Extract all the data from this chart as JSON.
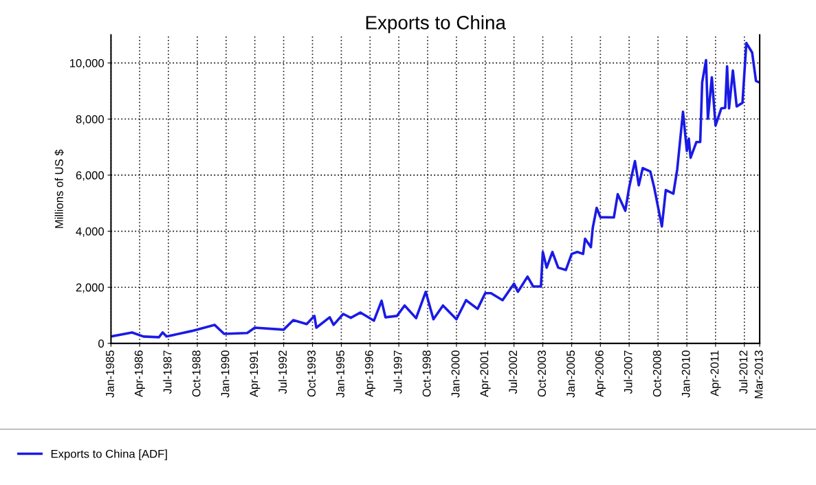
{
  "chart_data": {
    "type": "line",
    "title": "Exports to China",
    "ylabel": "Millions of US $",
    "x": [
      "1985-01",
      "1985-12",
      "1986-06",
      "1987-02",
      "1987-04",
      "1987-06",
      "1988-07",
      "1989-07",
      "1989-12",
      "1990-12",
      "1991-04",
      "1992-07",
      "1992-12",
      "1993-07",
      "1993-11",
      "1993-12",
      "1994-07",
      "1994-09",
      "1995-02",
      "1995-06",
      "1995-11",
      "1996-06",
      "1996-10",
      "1996-12",
      "1997-06",
      "1997-10",
      "1998-04",
      "1998-09",
      "1999-01",
      "1999-06",
      "2000-01",
      "2000-06",
      "2000-12",
      "2001-04",
      "2001-07",
      "2002-01",
      "2002-07",
      "2002-09",
      "2003-02",
      "2003-05",
      "2003-09",
      "2003-10",
      "2003-12",
      "2004-03",
      "2004-06",
      "2004-10",
      "2005-01",
      "2005-04",
      "2005-07",
      "2005-08",
      "2005-11",
      "2005-12",
      "2006-02",
      "2006-04",
      "2006-11",
      "2007-01",
      "2007-05",
      "2007-07",
      "2007-10",
      "2007-12",
      "2008-02",
      "2008-06",
      "2008-08",
      "2008-12",
      "2009-02",
      "2009-06",
      "2009-08",
      "2009-11",
      "2010-01",
      "2010-02",
      "2010-03",
      "2010-06",
      "2010-08",
      "2010-09",
      "2010-11",
      "2010-12",
      "2011-02",
      "2011-04",
      "2011-07",
      "2011-09",
      "2011-10",
      "2011-11",
      "2012-01",
      "2012-03",
      "2012-06",
      "2012-08",
      "2012-11",
      "2013-01",
      "2013-03"
    ],
    "series": [
      {
        "name": "Exports to China [ADF]",
        "color": "#1a1ae6",
        "values": [
          245,
          390,
          245,
          220,
          390,
          245,
          440,
          660,
          340,
          370,
          560,
          490,
          830,
          690,
          980,
          560,
          930,
          660,
          1050,
          910,
          1100,
          810,
          1520,
          930,
          980,
          1350,
          900,
          1840,
          860,
          1350,
          860,
          1540,
          1230,
          1790,
          1790,
          1540,
          2130,
          1840,
          2380,
          2030,
          2030,
          3260,
          2700,
          3260,
          2700,
          2620,
          3190,
          3260,
          3190,
          3730,
          3430,
          4120,
          4830,
          4500,
          4490,
          5320,
          4730,
          5560,
          6500,
          5640,
          6250,
          6130,
          5560,
          4170,
          5470,
          5340,
          6200,
          8260,
          6860,
          7300,
          6620,
          7180,
          7180,
          9310,
          10100,
          8010,
          9490,
          7770,
          8380,
          8400,
          9880,
          8380,
          9730,
          8450,
          8580,
          10710,
          10370,
          9360,
          9300
        ]
      }
    ],
    "xlim": [
      "1985-01",
      "2013-03"
    ],
    "xticks": [
      {
        "value": "1985-01",
        "label": "Jan-1985"
      },
      {
        "value": "1986-04",
        "label": "Apr-1986"
      },
      {
        "value": "1987-07",
        "label": "Jul-1987"
      },
      {
        "value": "1988-10",
        "label": "Oct-1988"
      },
      {
        "value": "1990-01",
        "label": "Jan-1990"
      },
      {
        "value": "1991-04",
        "label": "Apr-1991"
      },
      {
        "value": "1992-07",
        "label": "Jul-1992"
      },
      {
        "value": "1993-10",
        "label": "Oct-1993"
      },
      {
        "value": "1995-01",
        "label": "Jan-1995"
      },
      {
        "value": "1996-04",
        "label": "Apr-1996"
      },
      {
        "value": "1997-07",
        "label": "Jul-1997"
      },
      {
        "value": "1998-10",
        "label": "Oct-1998"
      },
      {
        "value": "2000-01",
        "label": "Jan-2000"
      },
      {
        "value": "2001-04",
        "label": "Apr-2001"
      },
      {
        "value": "2002-07",
        "label": "Jul-2002"
      },
      {
        "value": "2003-10",
        "label": "Oct-2003"
      },
      {
        "value": "2005-01",
        "label": "Jan-2005"
      },
      {
        "value": "2006-04",
        "label": "Apr-2006"
      },
      {
        "value": "2007-07",
        "label": "Jul-2007"
      },
      {
        "value": "2008-10",
        "label": "Oct-2008"
      },
      {
        "value": "2010-01",
        "label": "Jan-2010"
      },
      {
        "value": "2011-04",
        "label": "Apr-2011"
      },
      {
        "value": "2012-07",
        "label": "Jul-2012"
      },
      {
        "value": "2013-03",
        "label": "Mar-2013"
      }
    ],
    "ylim": [
      0,
      11000
    ],
    "yticks": [
      0,
      {
        "value": 2000,
        "label": "2,000"
      },
      {
        "value": 4000,
        "label": "4,000"
      },
      {
        "value": 6000,
        "label": "6,000"
      },
      {
        "value": 8000,
        "label": "8,000"
      },
      {
        "value": 10000,
        "label": "10,000"
      }
    ],
    "grid": true,
    "legend": "bottom",
    "marker": "none",
    "line_style": "solid"
  }
}
